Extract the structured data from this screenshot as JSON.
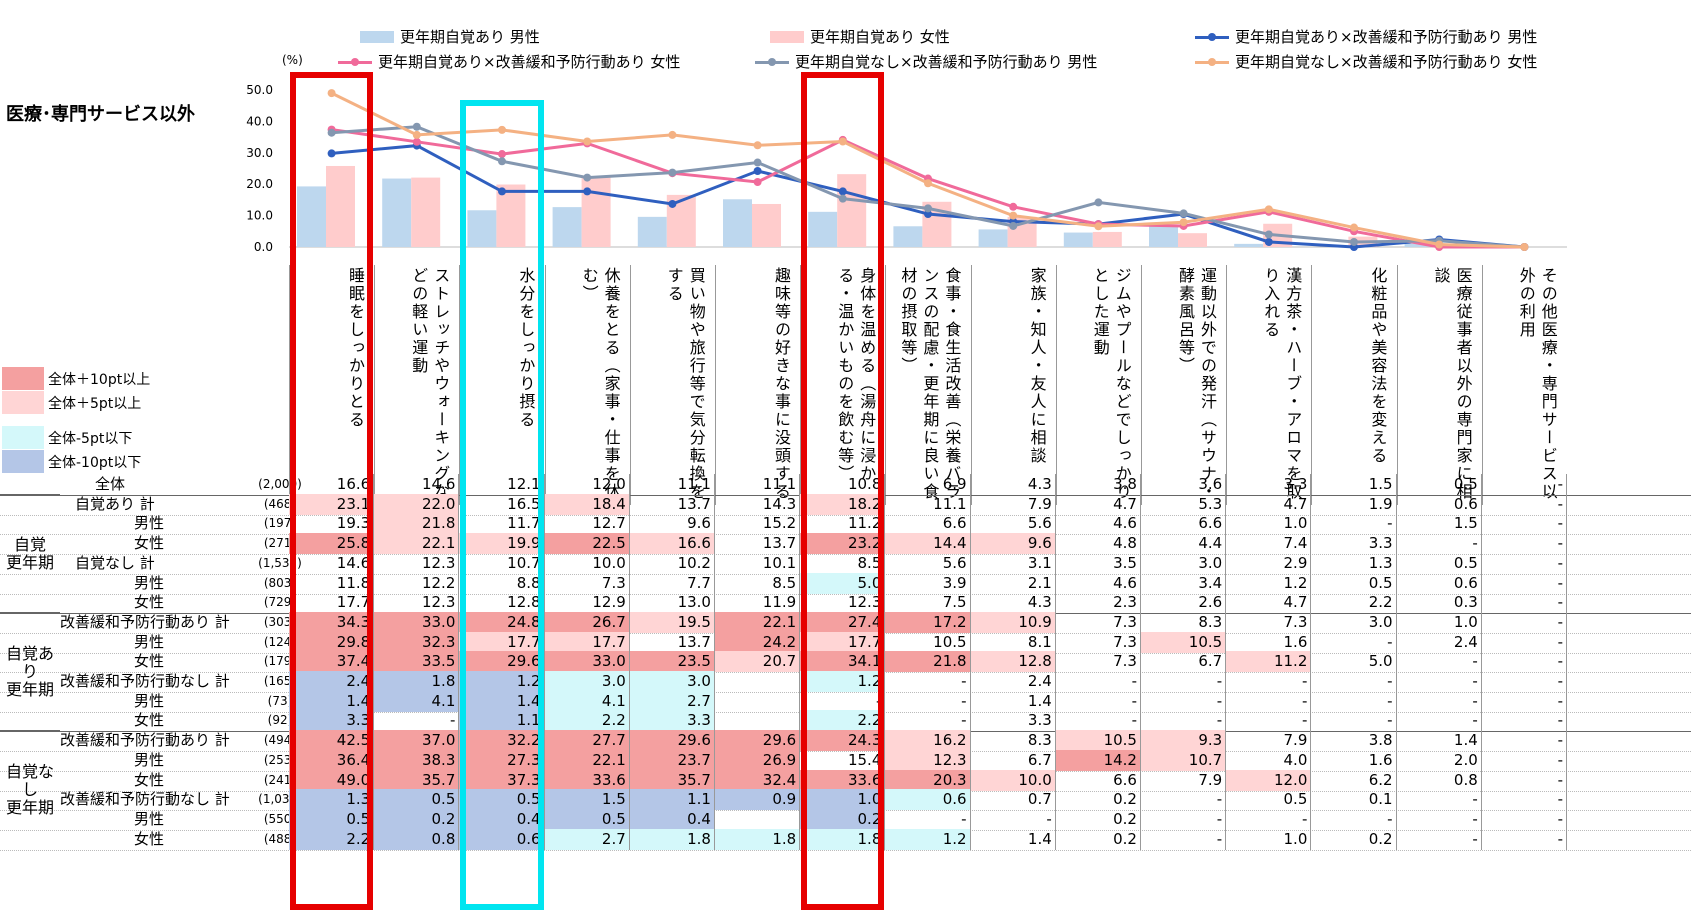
{
  "title": "医療･専門サービス以外",
  "unit_label": "(%)",
  "legend": [
    {
      "label": "更年期自覚あり 男性",
      "kind": "bar",
      "color": "#bdd7ee"
    },
    {
      "label": "更年期自覚あり 女性",
      "kind": "bar",
      "color": "#ffcccc"
    },
    {
      "label": "更年期自覚あり×改善緩和予防行動あり 男性",
      "kind": "line",
      "color": "#2f5fbf"
    },
    {
      "label": "更年期自覚あり×改善緩和予防行動あり 女性",
      "kind": "line",
      "color": "#f06a9a"
    },
    {
      "label": "更年期自覚なし×改善緩和予防行動あり 男性",
      "kind": "line",
      "color": "#8497b0"
    },
    {
      "label": "更年期自覚なし×改善緩和予防行動あり 女性",
      "kind": "line",
      "color": "#f4b183"
    }
  ],
  "significance_legend": [
    {
      "label": "全体＋10pt以上",
      "color": "#f4a0a0"
    },
    {
      "label": "全体＋5pt以上",
      "color": "#ffd5d5"
    },
    {
      "label": "全体-5pt以下",
      "color": "#d4f8fa"
    },
    {
      "label": "全体-10pt以下",
      "color": "#b4c6e7"
    }
  ],
  "chart_data": {
    "type": "bar",
    "ylim": [
      0,
      50
    ],
    "yticks": [
      "0.0",
      "10.0",
      "20.0",
      "30.0",
      "40.0",
      "50.0"
    ],
    "categories": [
      "睡眠をしっかりとる",
      "ストレッチやウォーキングなどの軽い運動",
      "水分をしっかり摂る",
      "休養をとる（家事・仕事を休む）",
      "買い物や旅行等で気分転換をする",
      "趣味等の好きな事に没頭する",
      "身体を温める（湯舟に浸かる・温かいものを飲む等）",
      "食事・食生活改善（栄養バランスの配慮・更年期に良い食材の摂取等）",
      "家族・知人・友人に相談",
      "ジムやプールなどでしっかりとした運動",
      "運動以外での発汗（サウナ・酵素風呂等）",
      "漢方茶・ハーブ・アロマを取り入れる",
      "化粧品や美容法を変える",
      "医療従事者以外の専門家に相談",
      "その他医療・専門サービス以外の利用"
    ],
    "series": [
      {
        "name": "更年期自覚あり 男性",
        "kind": "bar",
        "values": [
          19.3,
          21.8,
          11.7,
          12.7,
          9.6,
          15.2,
          11.2,
          6.6,
          5.6,
          4.6,
          6.6,
          1.0,
          0,
          1.5,
          0
        ]
      },
      {
        "name": "更年期自覚あり 女性",
        "kind": "bar",
        "values": [
          25.8,
          22.1,
          19.9,
          22.5,
          16.6,
          13.7,
          23.2,
          14.4,
          9.6,
          4.8,
          4.4,
          7.4,
          3.3,
          0,
          0
        ]
      },
      {
        "name": "更年期自覚あり×改善緩和予防行動あり 男性",
        "kind": "line",
        "values": [
          29.8,
          32.3,
          17.7,
          17.7,
          13.7,
          24.2,
          17.7,
          10.5,
          8.1,
          7.3,
          10.5,
          1.6,
          0,
          2.4,
          0
        ]
      },
      {
        "name": "更年期自覚あり×改善緩和予防行動あり 女性",
        "kind": "line",
        "values": [
          37.4,
          33.5,
          29.6,
          33.0,
          23.5,
          20.7,
          34.1,
          21.8,
          12.8,
          7.3,
          6.7,
          11.2,
          5.0,
          0,
          0
        ]
      },
      {
        "name": "更年期自覚なし×改善緩和予防行動あり 男性",
        "kind": "line",
        "values": [
          36.4,
          38.3,
          27.3,
          22.1,
          23.7,
          26.9,
          15.4,
          12.3,
          6.7,
          14.2,
          10.7,
          4.0,
          1.6,
          2.0,
          0
        ]
      },
      {
        "name": "更年期自覚なし×改善緩和予防行動あり 女性",
        "kind": "line",
        "values": [
          49.0,
          35.7,
          37.3,
          33.6,
          35.7,
          32.4,
          33.6,
          20.3,
          10.0,
          6.6,
          7.9,
          12.0,
          6.2,
          0.8,
          0
        ]
      }
    ]
  },
  "table": {
    "groups": [
      {
        "label": "自覚\n更年期",
        "row_start": 1,
        "row_end": 7
      },
      {
        "label": "自覚あり\n更年期",
        "row_start": 7,
        "row_end": 13
      },
      {
        "label": "自覚なし\n更年期",
        "row_start": 13,
        "row_end": 19
      }
    ],
    "rows": [
      {
        "label": "全体",
        "n": "(2,000)",
        "indent": 2,
        "values": [
          "16.6",
          "14.6",
          "12.1",
          "12.0",
          "11.1",
          "11.1",
          "10.8",
          "6.9",
          "4.3",
          "3.8",
          "3.6",
          "3.3",
          "1.5",
          "0.5",
          "-"
        ],
        "colors": [
          "",
          "",
          "",
          "",
          "",
          "",
          "",
          "",
          "",
          "",
          "",
          "",
          "",
          "",
          ""
        ]
      },
      {
        "label": "自覚あり 計",
        "n": "(468)",
        "indent": 1,
        "values": [
          "23.1",
          "22.0",
          "16.5",
          "18.4",
          "13.7",
          "14.3",
          "18.2",
          "11.1",
          "7.9",
          "4.7",
          "5.3",
          "4.7",
          "1.9",
          "0.6",
          "-"
        ],
        "colors": [
          "p",
          "p",
          "",
          "p",
          "",
          "",
          "p",
          "",
          "",
          "",
          "",
          "",
          "",
          "",
          ""
        ]
      },
      {
        "label": "男性",
        "n": "(197)",
        "indent": 3,
        "values": [
          "19.3",
          "21.8",
          "11.7",
          "12.7",
          "9.6",
          "15.2",
          "11.2",
          "6.6",
          "5.6",
          "4.6",
          "6.6",
          "1.0",
          "-",
          "1.5",
          "-"
        ],
        "colors": [
          "",
          "p",
          "",
          "",
          "",
          "",
          "",
          "",
          "",
          "",
          "",
          "",
          "",
          "",
          ""
        ]
      },
      {
        "label": "女性",
        "n": "(271)",
        "indent": 3,
        "values": [
          "25.8",
          "22.1",
          "19.9",
          "22.5",
          "16.6",
          "13.7",
          "23.2",
          "14.4",
          "9.6",
          "4.8",
          "4.4",
          "7.4",
          "3.3",
          "-",
          "-"
        ],
        "colors": [
          "P",
          "p",
          "p",
          "P",
          "p",
          "",
          "P",
          "p",
          "p",
          "",
          "",
          "",
          "",
          "",
          ""
        ]
      },
      {
        "label": "自覚なし 計",
        "n": "(1,532)",
        "indent": 1,
        "values": [
          "14.6",
          "12.3",
          "10.7",
          "10.0",
          "10.2",
          "10.1",
          "8.5",
          "5.6",
          "3.1",
          "3.5",
          "3.0",
          "2.9",
          "1.3",
          "0.5",
          "-"
        ],
        "colors": [
          "",
          "",
          "",
          "",
          "",
          "",
          "",
          "",
          "",
          "",
          "",
          "",
          "",
          "",
          ""
        ]
      },
      {
        "label": "男性",
        "n": "(803)",
        "indent": 3,
        "values": [
          "11.8",
          "12.2",
          "8.8",
          "7.3",
          "7.7",
          "8.5",
          "5.0",
          "3.9",
          "2.1",
          "4.6",
          "3.4",
          "1.2",
          "0.5",
          "0.6",
          "-"
        ],
        "colors": [
          "",
          "",
          "",
          "",
          "",
          "",
          "c",
          "",
          "",
          "",
          "",
          "",
          "",
          "",
          ""
        ]
      },
      {
        "label": "女性",
        "n": "(729)",
        "indent": 3,
        "values": [
          "17.7",
          "12.3",
          "12.8",
          "12.9",
          "13.0",
          "11.9",
          "12.3",
          "7.5",
          "4.3",
          "2.3",
          "2.6",
          "4.7",
          "2.2",
          "0.3",
          "-"
        ],
        "colors": [
          "",
          "",
          "",
          "",
          "",
          "",
          "",
          "",
          "",
          "",
          "",
          "",
          "",
          "",
          ""
        ]
      },
      {
        "label": "改善緩和予防行動あり 計",
        "n": "(303)",
        "indent": 0,
        "values": [
          "34.3",
          "33.0",
          "24.8",
          "26.7",
          "19.5",
          "22.1",
          "27.4",
          "17.2",
          "10.9",
          "7.3",
          "8.3",
          "7.3",
          "3.0",
          "1.0",
          "-"
        ],
        "colors": [
          "P",
          "P",
          "P",
          "P",
          "p",
          "P",
          "P",
          "P",
          "p",
          "",
          "",
          "",
          "",
          "",
          ""
        ]
      },
      {
        "label": "男性",
        "n": "(124)",
        "indent": 3,
        "values": [
          "29.8",
          "32.3",
          "17.7",
          "17.7",
          "13.7",
          "24.2",
          "17.7",
          "10.5",
          "8.1",
          "7.3",
          "10.5",
          "1.6",
          "-",
          "2.4",
          "-"
        ],
        "colors": [
          "P",
          "P",
          "p",
          "p",
          "",
          "P",
          "p",
          "",
          "",
          "",
          "p",
          "",
          "",
          "",
          ""
        ]
      },
      {
        "label": "女性",
        "n": "(179)",
        "indent": 3,
        "values": [
          "37.4",
          "33.5",
          "29.6",
          "33.0",
          "23.5",
          "20.7",
          "34.1",
          "21.8",
          "12.8",
          "7.3",
          "6.7",
          "11.2",
          "5.0",
          "-",
          "-"
        ],
        "colors": [
          "P",
          "P",
          "P",
          "P",
          "P",
          "p",
          "P",
          "P",
          "p",
          "",
          "",
          "p",
          "",
          "",
          ""
        ]
      },
      {
        "label": "改善緩和予防行動なし 計",
        "n": "(165)",
        "indent": 0,
        "values": [
          "2.4",
          "1.8",
          "1.2",
          "3.0",
          "3.0",
          "",
          "1.2",
          "-",
          "2.4",
          "-",
          "-",
          "-",
          "-",
          "-",
          "-"
        ],
        "colors": [
          "B",
          "B",
          "B",
          "c",
          "c",
          "",
          "c",
          "",
          "",
          "",
          "",
          "",
          "",
          "",
          ""
        ]
      },
      {
        "label": "男性",
        "n": "(73)",
        "indent": 3,
        "values": [
          "1.4",
          "4.1",
          "1.4",
          "4.1",
          "2.7",
          "",
          "-",
          "-",
          "1.4",
          "-",
          "-",
          "-",
          "-",
          "-",
          "-"
        ],
        "colors": [
          "B",
          "B",
          "B",
          "c",
          "c",
          "",
          "",
          "",
          "",
          "",
          "",
          "",
          "",
          "",
          ""
        ]
      },
      {
        "label": "女性",
        "n": "(92)",
        "indent": 3,
        "values": [
          "3.3",
          "-",
          "1.1",
          "2.2",
          "3.3",
          "",
          "2.2",
          "-",
          "3.3",
          "-",
          "-",
          "-",
          "-",
          "-",
          "-"
        ],
        "colors": [
          "B",
          "",
          "B",
          "c",
          "c",
          "",
          "c",
          "",
          "",
          "",
          "",
          "",
          "",
          "",
          ""
        ]
      },
      {
        "label": "改善緩和予防行動あり 計",
        "n": "(494)",
        "indent": 0,
        "values": [
          "42.5",
          "37.0",
          "32.2",
          "27.7",
          "29.6",
          "29.6",
          "24.3",
          "16.2",
          "8.3",
          "10.5",
          "9.3",
          "7.9",
          "3.8",
          "1.4",
          "-"
        ],
        "colors": [
          "P",
          "P",
          "P",
          "P",
          "P",
          "P",
          "P",
          "p",
          "",
          "p",
          "p",
          "",
          "",
          "",
          ""
        ]
      },
      {
        "label": "男性",
        "n": "(253)",
        "indent": 3,
        "values": [
          "36.4",
          "38.3",
          "27.3",
          "22.1",
          "23.7",
          "26.9",
          "15.4",
          "12.3",
          "6.7",
          "14.2",
          "10.7",
          "4.0",
          "1.6",
          "2.0",
          "-"
        ],
        "colors": [
          "P",
          "P",
          "P",
          "P",
          "P",
          "P",
          "",
          "p",
          "",
          "P",
          "p",
          "",
          "",
          "",
          ""
        ]
      },
      {
        "label": "女性",
        "n": "(241)",
        "indent": 3,
        "values": [
          "49.0",
          "35.7",
          "37.3",
          "33.6",
          "35.7",
          "32.4",
          "33.6",
          "20.3",
          "10.0",
          "6.6",
          "7.9",
          "12.0",
          "6.2",
          "0.8",
          "-"
        ],
        "colors": [
          "P",
          "P",
          "P",
          "P",
          "P",
          "P",
          "P",
          "P",
          "p",
          "",
          "",
          "p",
          "",
          "",
          ""
        ]
      },
      {
        "label": "改善緩和予防行動なし 計",
        "n": "(1,038)",
        "indent": 0,
        "values": [
          "1.3",
          "0.5",
          "0.5",
          "1.5",
          "1.1",
          "0.9",
          "1.0",
          "0.6",
          "0.7",
          "0.2",
          "-",
          "0.5",
          "0.1",
          "-",
          "-"
        ],
        "colors": [
          "B",
          "B",
          "B",
          "B",
          "B",
          "B",
          "B",
          "c",
          "",
          "",
          "",
          "",
          "",
          "",
          ""
        ]
      },
      {
        "label": "男性",
        "n": "(550)",
        "indent": 3,
        "values": [
          "0.5",
          "0.2",
          "0.4",
          "0.5",
          "0.4",
          "",
          "0.2",
          "-",
          "-",
          "0.2",
          "-",
          "-",
          "-",
          "-",
          "-"
        ],
        "colors": [
          "B",
          "B",
          "B",
          "B",
          "B",
          "",
          "B",
          "",
          "",
          "",
          "",
          "",
          "",
          "",
          ""
        ]
      },
      {
        "label": "女性",
        "n": "(488)",
        "indent": 3,
        "values": [
          "2.2",
          "0.8",
          "0.6",
          "2.7",
          "1.8",
          "1.8",
          "1.8",
          "1.2",
          "1.4",
          "0.2",
          "-",
          "1.0",
          "0.2",
          "-",
          "-"
        ],
        "colors": [
          "B",
          "B",
          "B",
          "c",
          "c",
          "c",
          "c",
          "c",
          "",
          "",
          "",
          "",
          "",
          "",
          ""
        ]
      }
    ]
  },
  "highlights": [
    {
      "column": 0,
      "color": "#e60000"
    },
    {
      "column": 2,
      "color": "#00e5f0"
    },
    {
      "column": 6,
      "color": "#e60000"
    }
  ]
}
